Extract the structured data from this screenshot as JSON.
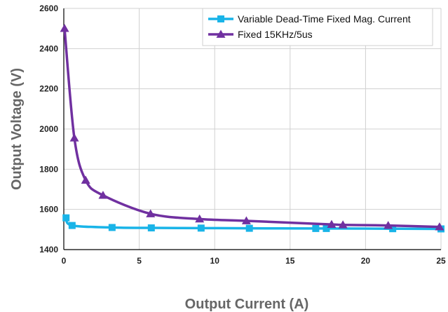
{
  "chart_data": {
    "type": "line",
    "title": "",
    "xlabel": "Output Current (A)",
    "ylabel": "Output Voltage (V)",
    "xlim": [
      0,
      25
    ],
    "ylim": [
      1400,
      2600
    ],
    "xticks": [
      0,
      5,
      10,
      15,
      20,
      25
    ],
    "yticks": [
      1400,
      1600,
      1800,
      2000,
      2200,
      2400,
      2600
    ],
    "xtick_labels": [
      "0",
      "5",
      "10",
      "15",
      "20",
      "25"
    ],
    "ytick_labels": [
      "1400",
      "1600",
      "1800",
      "2000",
      "2200",
      "2400",
      "2600"
    ],
    "grid": true,
    "legend_position": "top-right",
    "series": [
      {
        "name": "Variable Dead-Time Fixed Mag. Current",
        "marker": "square",
        "color": "#19b4e8",
        "x": [
          0.15,
          0.55,
          3.2,
          5.8,
          9.1,
          12.3,
          16.7,
          17.4,
          21.8,
          25.0
        ],
        "y": [
          1558,
          1520,
          1510,
          1508,
          1507,
          1506,
          1505,
          1505,
          1504,
          1503
        ]
      },
      {
        "name": "Fixed 15KHz/5us",
        "marker": "triangle",
        "color": "#7030a0",
        "x": [
          0.05,
          0.7,
          1.45,
          2.6,
          5.75,
          9.0,
          12.1,
          17.75,
          18.5,
          21.5,
          24.9
        ],
        "y": [
          2500,
          1955,
          1745,
          1670,
          1578,
          1552,
          1543,
          1525,
          1523,
          1520,
          1513
        ]
      }
    ]
  }
}
